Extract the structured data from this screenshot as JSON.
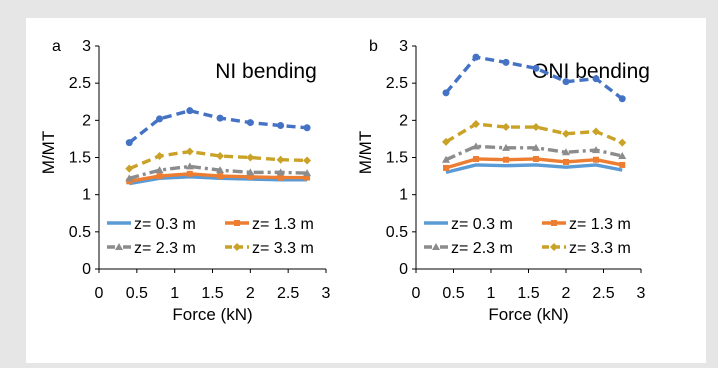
{
  "chart_data": [
    {
      "type": "line",
      "panel_label": "a",
      "title": "NI bending",
      "xlabel": "Force (kN)",
      "ylabel": "M/MT",
      "xlim": [
        0,
        3
      ],
      "ylim": [
        0,
        3
      ],
      "xticks": [
        "0",
        "0.5",
        "1",
        "1.5",
        "2",
        "2.5",
        "3"
      ],
      "yticks": [
        "0",
        "0.5",
        "1",
        "1.5",
        "2",
        "2.5",
        "3"
      ],
      "grid": false,
      "legend_position": "bottom",
      "x": [
        0.4,
        0.8,
        1.2,
        1.6,
        2.0,
        2.4,
        2.75
      ],
      "series": [
        {
          "name": "z= 0.3 m",
          "values": [
            1.15,
            1.22,
            1.24,
            1.22,
            1.21,
            1.2,
            1.2
          ],
          "color": "#5b9bd5",
          "style": "solid",
          "marker": "none"
        },
        {
          "name": "z= 1.3 m",
          "values": [
            1.18,
            1.25,
            1.28,
            1.25,
            1.24,
            1.23,
            1.23
          ],
          "color": "#ed7d31",
          "style": "solid",
          "marker": "square"
        },
        {
          "name": "z= 2.3 m",
          "values": [
            1.22,
            1.33,
            1.38,
            1.33,
            1.3,
            1.3,
            1.29
          ],
          "color": "#8c8c8c",
          "style": "dashdot",
          "marker": "triangle"
        },
        {
          "name": "z= 3.3 m",
          "values": [
            1.35,
            1.52,
            1.58,
            1.52,
            1.5,
            1.47,
            1.46
          ],
          "color": "#c9a227",
          "style": "dashed",
          "marker": "diamond"
        },
        {
          "name": "",
          "values": [
            1.7,
            2.02,
            2.13,
            2.03,
            1.97,
            1.93,
            1.9
          ],
          "color": "#4472c4",
          "style": "dashed",
          "marker": "circle"
        }
      ]
    },
    {
      "type": "line",
      "panel_label": "b",
      "title": "ONI bending",
      "xlabel": "Force (kN)",
      "ylabel": "M/MT",
      "xlim": [
        0,
        3
      ],
      "ylim": [
        0,
        3
      ],
      "xticks": [
        "0",
        "0.5",
        "1",
        "1.5",
        "2",
        "2.5",
        "3"
      ],
      "yticks": [
        "0",
        "0.5",
        "1",
        "1.5",
        "2",
        "2.5",
        "3"
      ],
      "grid": false,
      "legend_position": "bottom",
      "x": [
        0.4,
        0.8,
        1.2,
        1.6,
        2.0,
        2.4,
        2.75
      ],
      "series": [
        {
          "name": "z= 0.3 m",
          "values": [
            1.3,
            1.4,
            1.39,
            1.4,
            1.37,
            1.4,
            1.33
          ],
          "color": "#5b9bd5",
          "style": "solid",
          "marker": "none"
        },
        {
          "name": "z= 1.3 m",
          "values": [
            1.36,
            1.48,
            1.47,
            1.48,
            1.44,
            1.47,
            1.4
          ],
          "color": "#ed7d31",
          "style": "solid",
          "marker": "square"
        },
        {
          "name": "z= 2.3 m",
          "values": [
            1.47,
            1.65,
            1.63,
            1.63,
            1.57,
            1.6,
            1.52
          ],
          "color": "#8c8c8c",
          "style": "dashdot",
          "marker": "triangle"
        },
        {
          "name": "z= 3.3 m",
          "values": [
            1.71,
            1.95,
            1.91,
            1.91,
            1.82,
            1.85,
            1.7
          ],
          "color": "#c9a227",
          "style": "dashed",
          "marker": "diamond"
        },
        {
          "name": "",
          "values": [
            2.37,
            2.85,
            2.78,
            2.7,
            2.52,
            2.56,
            2.29
          ],
          "color": "#4472c4",
          "style": "dashed",
          "marker": "circle"
        }
      ]
    }
  ]
}
